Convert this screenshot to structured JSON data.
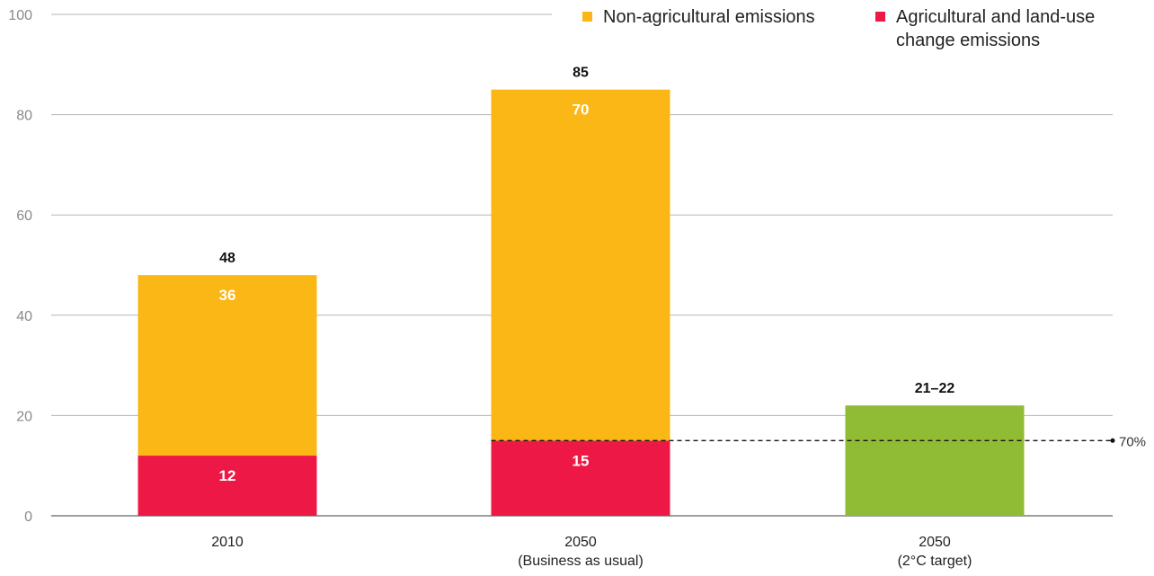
{
  "chart_data": {
    "type": "bar",
    "stacked": true,
    "categories": [
      "2010",
      "2050\n(Business as usual)",
      "2050\n(2°C target)"
    ],
    "series": [
      {
        "name": "Agricultural and land-use change emissions",
        "color": "#ee1846",
        "values": [
          12,
          15,
          null
        ]
      },
      {
        "name": "Non-agricultural emissions",
        "color": "#fab715",
        "values": [
          36,
          70,
          null
        ]
      },
      {
        "name": "",
        "color": "#8fbb35",
        "values": [
          null,
          null,
          22
        ]
      }
    ],
    "data_labels": {
      "agricultural": [
        "12",
        "15",
        ""
      ],
      "non_agricultural": [
        "36",
        "70",
        ""
      ]
    },
    "totals": [
      "48",
      "85",
      "21–22"
    ],
    "reference_line": {
      "value": 15,
      "label": "70%",
      "style": "dashed"
    },
    "ylim": [
      0,
      100
    ],
    "yticks": [
      0,
      20,
      40,
      60,
      80,
      100
    ],
    "grid": true,
    "legend_position": "top-right",
    "title": "",
    "xlabel": "",
    "ylabel": ""
  }
}
